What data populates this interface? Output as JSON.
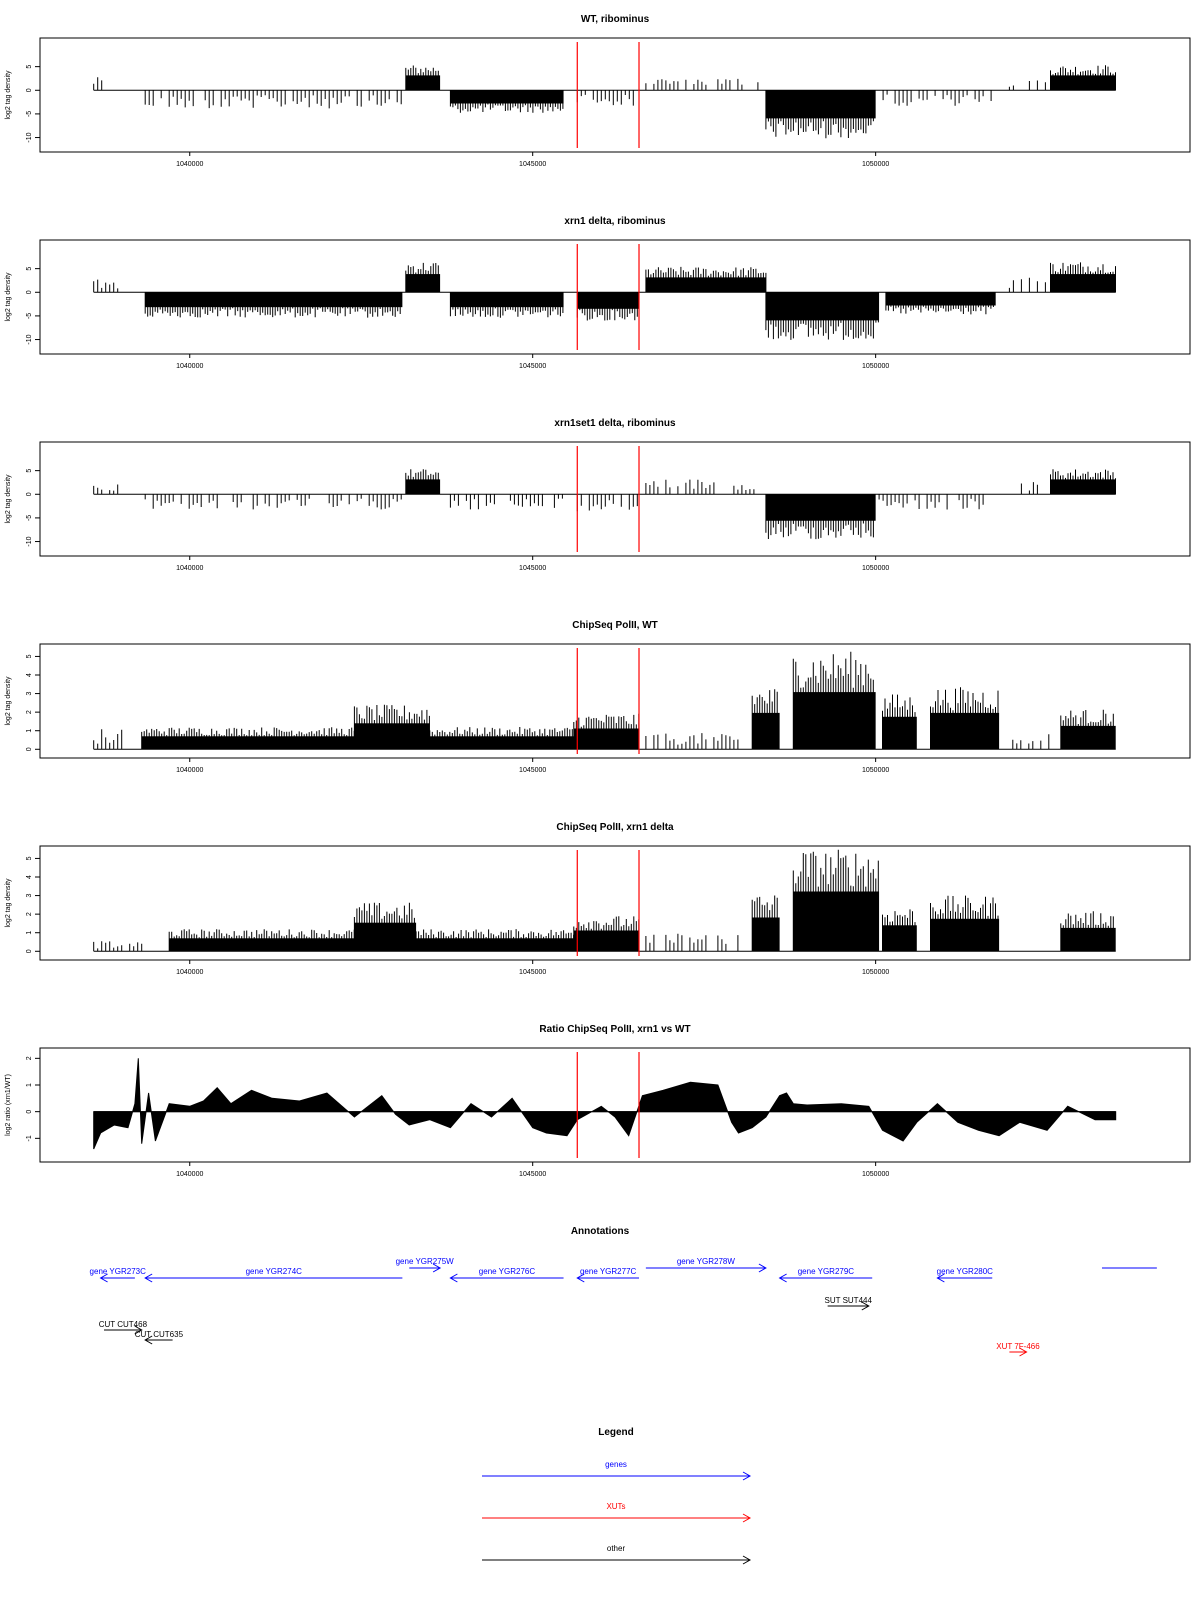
{
  "chart_data": [
    {
      "type": "bar",
      "title": "WT, ribominus",
      "xlabel": "",
      "ylabel": "log2 tag density",
      "xlim": [
        1038400,
        1054000
      ],
      "ylim": [
        -12,
        10
      ],
      "yticks": [
        "5",
        "0",
        "-5",
        "-10"
      ],
      "ytick_values": [
        5,
        0,
        -5,
        -10
      ],
      "xticks": [
        "1040000",
        "1045000",
        "1050000"
      ],
      "xtick_values": [
        1040000,
        1045000,
        1050000
      ],
      "marker_lines_x": [
        1045650,
        1046550
      ],
      "marker_color": "#ff0000",
      "segments": [
        {
          "x_start": 1038600,
          "x_end": 1038800,
          "value": 2.5,
          "fill": false
        },
        {
          "x_start": 1039350,
          "x_end": 1043100,
          "value": -3.5,
          "fill": false
        },
        {
          "x_start": 1043150,
          "x_end": 1043650,
          "value": 4.5,
          "fill": true
        },
        {
          "x_start": 1043800,
          "x_end": 1045450,
          "value": -4.0,
          "fill": true
        },
        {
          "x_start": 1045650,
          "x_end": 1046550,
          "value": -3.0,
          "fill": false
        },
        {
          "x_start": 1046650,
          "x_end": 1048300,
          "value": 2.5,
          "fill": false
        },
        {
          "x_start": 1048400,
          "x_end": 1050000,
          "value": -8.5,
          "fill": true
        },
        {
          "x_start": 1050050,
          "x_end": 1051700,
          "value": -3.0,
          "fill": false
        },
        {
          "x_start": 1051950,
          "x_end": 1052500,
          "value": 2.0,
          "fill": false
        },
        {
          "x_start": 1052550,
          "x_end": 1053500,
          "value": 4.5,
          "fill": true
        }
      ]
    },
    {
      "type": "bar",
      "title": "xrn1 delta, ribominus",
      "xlabel": "",
      "ylabel": "log2 tag density",
      "xlim": [
        1038400,
        1054000
      ],
      "ylim": [
        -12,
        10
      ],
      "yticks": [
        "5",
        "0",
        "-5",
        "-10"
      ],
      "ytick_values": [
        5,
        0,
        -5,
        -10
      ],
      "xticks": [
        "1040000",
        "1045000",
        "1050000"
      ],
      "xtick_values": [
        1040000,
        1045000,
        1050000
      ],
      "marker_lines_x": [
        1045650,
        1046550
      ],
      "marker_color": "#ff0000",
      "segments": [
        {
          "x_start": 1038600,
          "x_end": 1039000,
          "value": 2.5,
          "fill": false
        },
        {
          "x_start": 1039350,
          "x_end": 1043100,
          "value": -4.5,
          "fill": true
        },
        {
          "x_start": 1043150,
          "x_end": 1043650,
          "value": 5.5,
          "fill": true
        },
        {
          "x_start": 1043800,
          "x_end": 1045450,
          "value": -4.5,
          "fill": true
        },
        {
          "x_start": 1045650,
          "x_end": 1046550,
          "value": -5.0,
          "fill": true
        },
        {
          "x_start": 1046650,
          "x_end": 1048400,
          "value": 4.5,
          "fill": true
        },
        {
          "x_start": 1048400,
          "x_end": 1050050,
          "value": -8.5,
          "fill": true
        },
        {
          "x_start": 1050150,
          "x_end": 1051750,
          "value": -4.0,
          "fill": true
        },
        {
          "x_start": 1051950,
          "x_end": 1052500,
          "value": 3.0,
          "fill": false
        },
        {
          "x_start": 1052550,
          "x_end": 1053500,
          "value": 5.5,
          "fill": true
        }
      ]
    },
    {
      "type": "bar",
      "title": "xrn1set1 delta, ribominus",
      "xlabel": "",
      "ylabel": "log2 tag density",
      "xlim": [
        1038400,
        1054000
      ],
      "ylim": [
        -12,
        10
      ],
      "yticks": [
        "5",
        "0",
        "-5",
        "-10"
      ],
      "ytick_values": [
        5,
        0,
        -5,
        -10
      ],
      "xticks": [
        "1040000",
        "1045000",
        "1050000"
      ],
      "xtick_values": [
        1040000,
        1045000,
        1050000
      ],
      "marker_lines_x": [
        1045650,
        1046550
      ],
      "marker_color": "#ff0000",
      "segments": [
        {
          "x_start": 1038600,
          "x_end": 1039000,
          "value": 2.0,
          "fill": false
        },
        {
          "x_start": 1039350,
          "x_end": 1043100,
          "value": -3.0,
          "fill": false
        },
        {
          "x_start": 1043150,
          "x_end": 1043650,
          "value": 4.5,
          "fill": true
        },
        {
          "x_start": 1043800,
          "x_end": 1045450,
          "value": -3.0,
          "fill": false
        },
        {
          "x_start": 1045650,
          "x_end": 1046550,
          "value": -3.5,
          "fill": false
        },
        {
          "x_start": 1046650,
          "x_end": 1048300,
          "value": 3.0,
          "fill": false
        },
        {
          "x_start": 1048400,
          "x_end": 1050000,
          "value": -8.0,
          "fill": true
        },
        {
          "x_start": 1050050,
          "x_end": 1051700,
          "value": -3.0,
          "fill": false
        },
        {
          "x_start": 1051950,
          "x_end": 1052500,
          "value": 2.5,
          "fill": false
        },
        {
          "x_start": 1052550,
          "x_end": 1053500,
          "value": 4.5,
          "fill": true
        }
      ]
    },
    {
      "type": "bar",
      "title": "ChipSeq PolII, WT",
      "xlabel": "",
      "ylabel": "log2 tag density",
      "xlim": [
        1038400,
        1054000
      ],
      "ylim": [
        -0.2,
        5.4
      ],
      "yticks": [
        "0",
        "1",
        "2",
        "3",
        "4",
        "5"
      ],
      "ytick_values": [
        0,
        1,
        2,
        3,
        4,
        5
      ],
      "xticks": [
        "1040000",
        "1045000",
        "1050000"
      ],
      "xtick_values": [
        1040000,
        1045000,
        1050000
      ],
      "marker_lines_x": [
        1045650,
        1046550
      ],
      "marker_color": "#ff0000",
      "segments": [
        {
          "x_start": 1038600,
          "x_end": 1039100,
          "value": 1.0,
          "fill": false
        },
        {
          "x_start": 1039300,
          "x_end": 1042400,
          "value": 1.0,
          "fill": true
        },
        {
          "x_start": 1042400,
          "x_end": 1043500,
          "value": 2.0,
          "fill": true
        },
        {
          "x_start": 1043500,
          "x_end": 1045600,
          "value": 1.0,
          "fill": true
        },
        {
          "x_start": 1045600,
          "x_end": 1046550,
          "value": 1.6,
          "fill": true
        },
        {
          "x_start": 1046650,
          "x_end": 1048000,
          "value": 0.8,
          "fill": false
        },
        {
          "x_start": 1048200,
          "x_end": 1048600,
          "value": 2.8,
          "fill": true
        },
        {
          "x_start": 1048800,
          "x_end": 1050000,
          "value": 4.4,
          "fill": true
        },
        {
          "x_start": 1050100,
          "x_end": 1050600,
          "value": 2.5,
          "fill": true
        },
        {
          "x_start": 1050800,
          "x_end": 1051800,
          "value": 2.8,
          "fill": true
        },
        {
          "x_start": 1052000,
          "x_end": 1052600,
          "value": 0.8,
          "fill": false
        },
        {
          "x_start": 1052700,
          "x_end": 1053500,
          "value": 1.8,
          "fill": true
        }
      ]
    },
    {
      "type": "bar",
      "title": "ChipSeq PolII, xrn1 delta",
      "xlabel": "",
      "ylabel": "log2 tag density",
      "xlim": [
        1038400,
        1054000
      ],
      "ylim": [
        -0.2,
        5.4
      ],
      "yticks": [
        "0",
        "1",
        "2",
        "3",
        "4",
        "5"
      ],
      "ytick_values": [
        0,
        1,
        2,
        3,
        4,
        5
      ],
      "xticks": [
        "1040000",
        "1045000",
        "1050000"
      ],
      "xtick_values": [
        1040000,
        1045000,
        1050000
      ],
      "marker_lines_x": [
        1045650,
        1046550
      ],
      "marker_color": "#ff0000",
      "segments": [
        {
          "x_start": 1038600,
          "x_end": 1039300,
          "value": 0.5,
          "fill": false
        },
        {
          "x_start": 1039700,
          "x_end": 1042400,
          "value": 1.0,
          "fill": true
        },
        {
          "x_start": 1042400,
          "x_end": 1043300,
          "value": 2.2,
          "fill": true
        },
        {
          "x_start": 1043300,
          "x_end": 1045600,
          "value": 1.0,
          "fill": true
        },
        {
          "x_start": 1045600,
          "x_end": 1046550,
          "value": 1.6,
          "fill": true
        },
        {
          "x_start": 1046650,
          "x_end": 1048000,
          "value": 0.9,
          "fill": false
        },
        {
          "x_start": 1048200,
          "x_end": 1048600,
          "value": 2.6,
          "fill": true
        },
        {
          "x_start": 1048800,
          "x_end": 1050050,
          "value": 4.6,
          "fill": true
        },
        {
          "x_start": 1050100,
          "x_end": 1050600,
          "value": 2.0,
          "fill": true
        },
        {
          "x_start": 1050800,
          "x_end": 1051800,
          "value": 2.5,
          "fill": true
        },
        {
          "x_start": 1052700,
          "x_end": 1053500,
          "value": 1.8,
          "fill": true
        }
      ]
    },
    {
      "type": "area",
      "title": "Ratio ChipSeq PolII, xrn1 vs WT",
      "xlabel": "",
      "ylabel": "log2 ratio (xrn1/WT)",
      "xlim": [
        1038400,
        1054000
      ],
      "ylim": [
        -1.7,
        2.2
      ],
      "yticks": [
        "-1",
        "0",
        "1",
        "2"
      ],
      "ytick_values": [
        -1,
        0,
        1,
        2
      ],
      "xticks": [
        "1040000",
        "1045000",
        "1050000"
      ],
      "xtick_values": [
        1040000,
        1045000,
        1050000
      ],
      "marker_lines_x": [
        1045650,
        1046550
      ],
      "marker_color": "#ff0000",
      "x": [
        1038600,
        1038700,
        1038900,
        1039100,
        1039200,
        1039250,
        1039300,
        1039400,
        1039500,
        1039700,
        1040000,
        1040200,
        1040400,
        1040600,
        1040900,
        1041200,
        1041600,
        1042000,
        1042400,
        1042800,
        1043000,
        1043200,
        1043500,
        1043800,
        1044100,
        1044400,
        1044700,
        1045000,
        1045200,
        1045500,
        1045650,
        1046000,
        1046200,
        1046400,
        1046600,
        1046900,
        1047300,
        1047700,
        1047900,
        1048000,
        1048200,
        1048400,
        1048600,
        1048700,
        1048800,
        1049000,
        1049500,
        1049900,
        1050100,
        1050400,
        1050600,
        1050900,
        1051200,
        1051500,
        1051800,
        1052100,
        1052500,
        1052800,
        1053200,
        1053500
      ],
      "values": [
        -1.4,
        -0.8,
        -0.5,
        -0.6,
        0.3,
        2.0,
        -1.2,
        0.7,
        -1.1,
        0.3,
        0.2,
        0.4,
        0.9,
        0.3,
        0.8,
        0.5,
        0.4,
        0.7,
        -0.2,
        0.6,
        -0.1,
        -0.5,
        -0.3,
        -0.6,
        0.3,
        -0.2,
        0.5,
        -0.6,
        -0.8,
        -0.9,
        -0.3,
        0.2,
        -0.2,
        -0.9,
        0.6,
        0.8,
        1.1,
        1.0,
        -0.4,
        -0.8,
        -0.6,
        -0.2,
        0.6,
        0.7,
        0.3,
        0.25,
        0.3,
        0.2,
        -0.7,
        -1.1,
        -0.4,
        0.3,
        -0.4,
        -0.7,
        -0.9,
        -0.4,
        -0.7,
        0.2,
        -0.3,
        -0.3
      ]
    }
  ],
  "annotations": {
    "title": "Annotations",
    "genes": [
      {
        "label": "gene YGR273C",
        "x_start": 1038700,
        "x_end": 1039200,
        "direction": "left"
      },
      {
        "label": "gene YGR274C",
        "x_start": 1039350,
        "x_end": 1043100,
        "direction": "left"
      },
      {
        "label": "gene YGR275W",
        "x_start": 1043200,
        "x_end": 1043650,
        "direction": "right"
      },
      {
        "label": "gene YGR276C",
        "x_start": 1043800,
        "x_end": 1045450,
        "direction": "left"
      },
      {
        "label": "gene YGR277C",
        "x_start": 1045650,
        "x_end": 1046550,
        "direction": "left"
      },
      {
        "label": "gene YGR278W",
        "x_start": 1046650,
        "x_end": 1048400,
        "direction": "right"
      },
      {
        "label": "gene YGR279C",
        "x_start": 1048600,
        "x_end": 1049950,
        "direction": "left"
      },
      {
        "label": "gene YGR280C",
        "x_start": 1050900,
        "x_end": 1051700,
        "direction": "left"
      },
      {
        "label": "",
        "x_start": 1053300,
        "x_end": 1054100,
        "direction": "none"
      }
    ],
    "others": [
      {
        "label": "CUT CUT468",
        "x_start": 1038750,
        "x_end": 1039300,
        "direction": "right"
      },
      {
        "label": "CUT CUT635",
        "x_start": 1039350,
        "x_end": 1039750,
        "direction": "left"
      },
      {
        "label": "SUT SUT444",
        "x_start": 1049300,
        "x_end": 1049900,
        "direction": "right"
      }
    ],
    "xuts": [
      {
        "label": "XUT 7F-466",
        "x_start": 1051950,
        "x_end": 1052200,
        "direction": "right"
      }
    ]
  },
  "legend": {
    "title": "Legend",
    "items": [
      {
        "label": "genes",
        "color": "#0000ff"
      },
      {
        "label": "XUTs",
        "color": "#ff0000"
      },
      {
        "label": "other",
        "color": "#000000"
      }
    ]
  },
  "colors": {
    "gene": "#0000ff",
    "xut": "#ff0000",
    "other": "#000000",
    "marker": "#ff0000"
  }
}
